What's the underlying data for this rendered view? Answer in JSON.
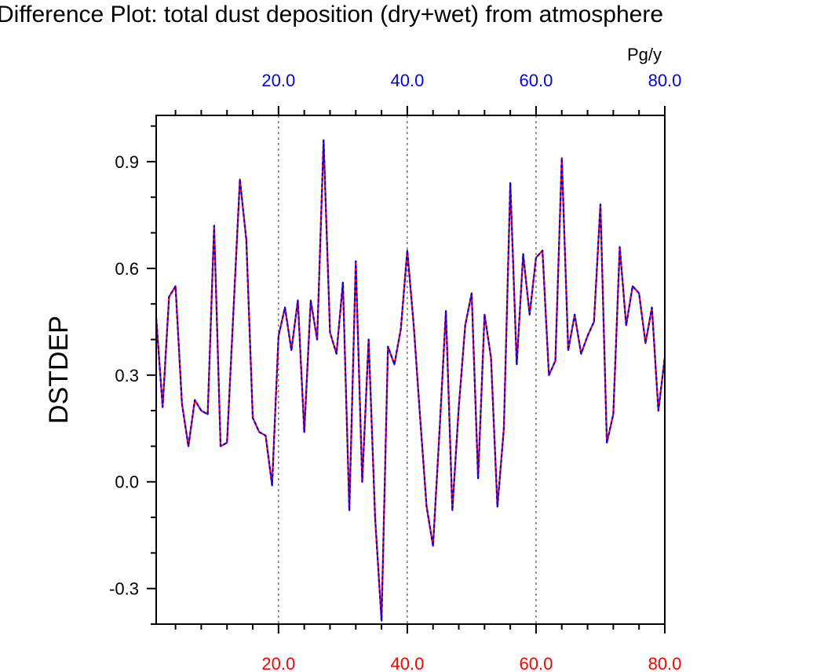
{
  "chart_data": {
    "type": "line",
    "title": "Difference Plot: total dust deposition (dry+wet) from atmosphere",
    "ylabel": "DSTDEP",
    "top_units": "Pg/y",
    "xlim": [
      1,
      80
    ],
    "ylim": [
      -0.4,
      1.03
    ],
    "x_ticks_bottom": [
      {
        "value": 20,
        "label": "20.0"
      },
      {
        "value": 40,
        "label": "40.0"
      },
      {
        "value": 60,
        "label": "60.0"
      },
      {
        "value": 80,
        "label": "80.0"
      }
    ],
    "x_ticks_top": [
      {
        "value": 20,
        "label": "20.0"
      },
      {
        "value": 40,
        "label": "40.0"
      },
      {
        "value": 60,
        "label": "60.0"
      },
      {
        "value": 80,
        "label": "80.0"
      }
    ],
    "y_ticks": [
      {
        "value": 0.9,
        "label": "0.9"
      },
      {
        "value": 0.6,
        "label": "0.6"
      },
      {
        "value": 0.3,
        "label": "0.3"
      },
      {
        "value": 0.0,
        "label": "0.0"
      },
      {
        "value": -0.3,
        "label": "-0.3"
      }
    ],
    "y_minor_step": 0.1,
    "x_minor_step": 4,
    "grid": {
      "vertical": [
        20,
        40,
        60
      ],
      "style": "dashed"
    },
    "colors": {
      "line_base": "#ff0000",
      "line_dash": "#0000ff",
      "bottom_labels": "#ff0000",
      "top_labels": "#0000ff",
      "axis": "#000000"
    },
    "series": [
      {
        "x": [
          1,
          2,
          3,
          4,
          5,
          6,
          7,
          8,
          9,
          10,
          11,
          12,
          13,
          14,
          15,
          16,
          17,
          18,
          19,
          20,
          21,
          22,
          23,
          24,
          25,
          26,
          27,
          28,
          29,
          30,
          31,
          32,
          33,
          34,
          35,
          36,
          37,
          38,
          39,
          40,
          41,
          42,
          43,
          44,
          45,
          46,
          47,
          48,
          49,
          50,
          51,
          52,
          53,
          54,
          55,
          56,
          57,
          58,
          59,
          60,
          61,
          62,
          63,
          64,
          65,
          66,
          67,
          68,
          69,
          70,
          71,
          72,
          73,
          74,
          75,
          76,
          77,
          78,
          79,
          80
        ],
        "values": [
          0.46,
          0.21,
          0.52,
          0.55,
          0.22,
          0.1,
          0.23,
          0.2,
          0.19,
          0.72,
          0.1,
          0.11,
          0.48,
          0.85,
          0.68,
          0.18,
          0.14,
          0.13,
          -0.01,
          0.41,
          0.49,
          0.37,
          0.51,
          0.14,
          0.51,
          0.4,
          0.96,
          0.42,
          0.36,
          0.56,
          -0.08,
          0.62,
          0.0,
          0.4,
          -0.1,
          -0.39,
          0.38,
          0.33,
          0.43,
          0.65,
          0.44,
          0.18,
          -0.07,
          -0.18,
          0.14,
          0.48,
          -0.08,
          0.21,
          0.44,
          0.53,
          0.01,
          0.47,
          0.35,
          -0.07,
          0.15,
          0.84,
          0.33,
          0.64,
          0.47,
          0.63,
          0.65,
          0.3,
          0.34,
          0.91,
          0.37,
          0.47,
          0.36,
          0.41,
          0.45,
          0.78,
          0.11,
          0.19,
          0.66,
          0.44,
          0.55,
          0.53,
          0.39,
          0.49,
          0.2,
          0.35
        ]
      }
    ]
  }
}
